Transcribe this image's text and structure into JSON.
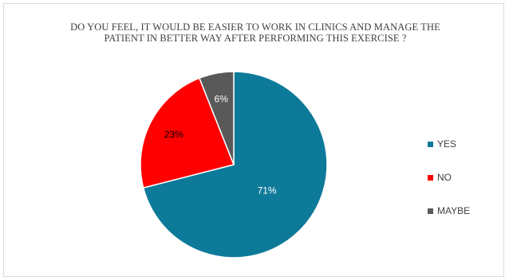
{
  "chart_data": {
    "type": "pie",
    "title_lines": [
      "DO YOU FEEL, IT WOULD BE EASIER TO WORK IN CLINICS AND MANAGE THE",
      "PATIENT IN BETTER WAY AFTER PERFORMING THIS EXERCISE ?"
    ],
    "slices": [
      {
        "label": "YES",
        "value": 71,
        "display": "71%",
        "color": "#0e7a99",
        "text_color": "#ffffff"
      },
      {
        "label": "NO",
        "value": 23,
        "display": "23%",
        "color": "#ff0000",
        "text_color": "#000000"
      },
      {
        "label": "MAYBE",
        "value": 6,
        "display": "6%",
        "color": "#595959",
        "text_color": "#ffffff"
      }
    ],
    "legend_position": "right",
    "start_angle_deg": 0,
    "direction": "clockwise"
  }
}
